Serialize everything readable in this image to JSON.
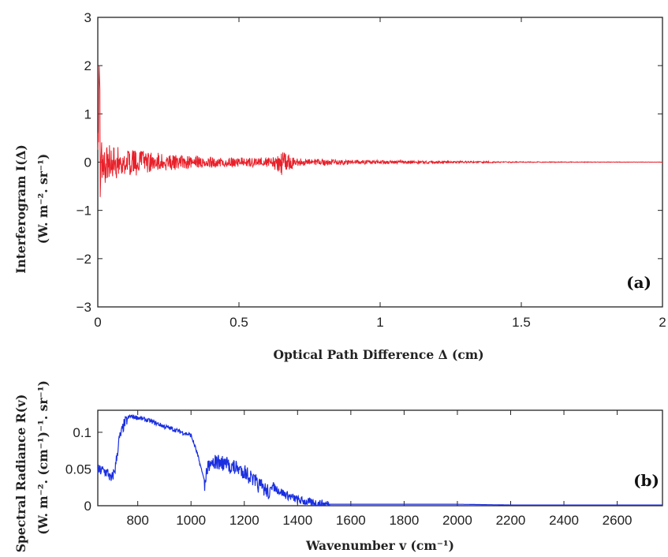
{
  "chart_data": [
    {
      "panel": "(a)",
      "type": "line",
      "xlabel": "Optical Path Difference Δ (cm)",
      "ylabel_line1": "Interferogram I(Δ)",
      "ylabel_line2": "(W. m⁻². sr⁻¹)",
      "xlim": [
        0,
        2
      ],
      "ylim": [
        -3,
        3
      ],
      "xticks": [
        "0",
        "0.5",
        "1",
        "1.5",
        "2"
      ],
      "yticks": [
        "−3",
        "−2",
        "−1",
        "0",
        "1",
        "2",
        "3"
      ],
      "color": "#e8202a",
      "series": [
        {
          "x": [
            0,
            0.005,
            0.01,
            0.02,
            0.05,
            0.1,
            0.2,
            0.3,
            0.4,
            0.5,
            0.6,
            0.65,
            0.67,
            0.7,
            0.8,
            0.9,
            1.0,
            1.2,
            1.3,
            1.5,
            1.8,
            2.0
          ],
          "envelope": [
            0.3,
            2.0,
            1.0,
            0.5,
            0.4,
            0.32,
            0.2,
            0.15,
            0.12,
            0.1,
            0.1,
            0.3,
            0.25,
            0.08,
            0.07,
            0.05,
            0.04,
            0.03,
            0.02,
            0.01,
            0.005,
            0.003
          ]
        }
      ]
    },
    {
      "panel": "(b)",
      "type": "line",
      "xlabel": "Wavenumber v (cm⁻¹)",
      "ylabel_line1": "Spectral Radiance R(v)",
      "ylabel_line2": "(W. m⁻². (cm⁻¹)⁻¹. sr⁻¹)",
      "xlim": [
        650,
        2770
      ],
      "ylim": [
        0,
        0.13
      ],
      "xticks": [
        "800",
        "1000",
        "1200",
        "1400",
        "1600",
        "1800",
        "2000",
        "2200",
        "2400",
        "2600"
      ],
      "yticks": [
        "0",
        "0.05",
        "0.1"
      ],
      "color": "#1a2fe0",
      "series": [
        {
          "x": [
            650,
            670,
            690,
            700,
            715,
            730,
            750,
            770,
            800,
            850,
            900,
            950,
            1000,
            1020,
            1040,
            1050,
            1060,
            1070,
            1100,
            1150,
            1200,
            1250,
            1300,
            1350,
            1400,
            1450,
            1500,
            1600,
            1800,
            2000,
            2200,
            2400,
            2770
          ],
          "y": [
            0.048,
            0.048,
            0.044,
            0.034,
            0.05,
            0.09,
            0.112,
            0.122,
            0.12,
            0.115,
            0.108,
            0.102,
            0.096,
            0.075,
            0.048,
            0.035,
            0.058,
            0.072,
            0.07,
            0.065,
            0.058,
            0.04,
            0.028,
            0.016,
            0.008,
            0.004,
            0.002,
            0.002,
            0.002,
            0.002,
            0.001,
            0.001,
            0.001
          ]
        }
      ]
    }
  ]
}
